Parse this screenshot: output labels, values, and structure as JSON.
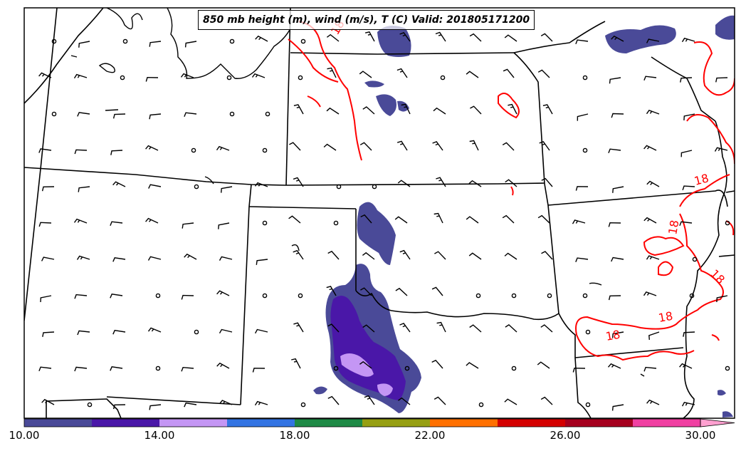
{
  "title": "850 mb height (m), wind (m/s), T (C) Valid: 201805171200",
  "contour_labels": [
    "18",
    "18",
    "18",
    "18",
    "18",
    "18"
  ],
  "colorbar": {
    "tick_labels": [
      "10.00",
      "14.00",
      "18.00",
      "22.00",
      "26.00",
      "30.00"
    ],
    "colors": [
      "#4a4a98",
      "#4a17a8",
      "#c496f4",
      "#3374e3",
      "#1e8a46",
      "#969f12",
      "#ff7000",
      "#d40000",
      "#a6001e",
      "#f040a2",
      "#ffa0d0"
    ]
  },
  "temperature_contour_color": "#ff0000",
  "map_features": [
    "state-borders",
    "coastline-lakes",
    "wind-barbs",
    "temperature-contours",
    "wind-speed-shading"
  ]
}
